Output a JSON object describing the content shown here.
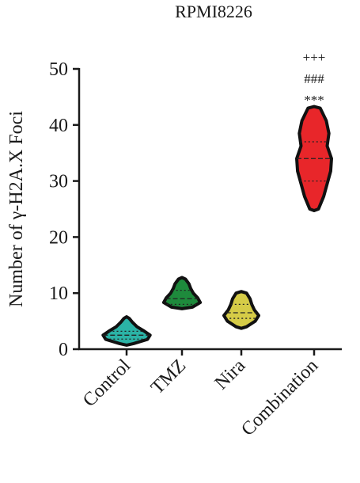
{
  "chart_data": {
    "type": "violin",
    "title": "RPMI8226",
    "y_label": "Number of γ-H2A.X Foci",
    "categories": [
      "Control",
      "TMZ",
      "Nira",
      "Combination"
    ],
    "violins": [
      {
        "color": "#2bb3a6",
        "min": 1,
        "max": 5.5,
        "q1": 1.8,
        "median": 2.5,
        "q3": 3.2,
        "density": [
          0.4,
          1.2,
          1.35,
          1.0,
          0.6,
          0.35,
          0.15
        ]
      },
      {
        "color": "#1e8a3c",
        "min": 7.5,
        "max": 12.5,
        "q1": 8,
        "median": 9,
        "q3": 10.5,
        "density": [
          0.6,
          1.05,
          0.9,
          0.65,
          0.5,
          0.4,
          0.2
        ]
      },
      {
        "color": "#d6cc47",
        "min": 4,
        "max": 10,
        "q1": 5.5,
        "median": 6.5,
        "q3": 8,
        "density": [
          0.3,
          0.8,
          1.0,
          0.75,
          0.6,
          0.5,
          0.3
        ]
      },
      {
        "color": "#e8262a",
        "min": 25,
        "max": 43,
        "q1": 30,
        "median": 34,
        "q3": 37,
        "density": [
          0.25,
          0.55,
          0.75,
          0.95,
          1.0,
          0.75,
          0.85,
          0.7,
          0.35
        ]
      }
    ],
    "annotations": [
      "+++",
      "###",
      "***"
    ],
    "ylim": [
      0,
      50
    ],
    "yticks": [
      0,
      10,
      20,
      30,
      40,
      50
    ]
  }
}
